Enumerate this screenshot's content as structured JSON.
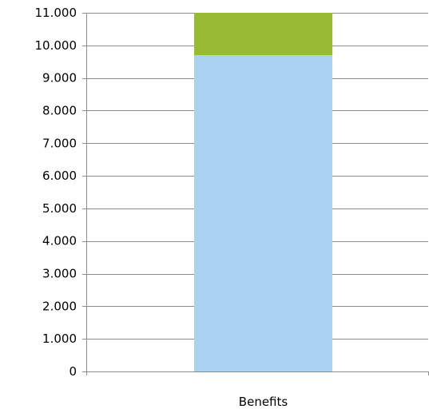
{
  "chart_data": {
    "type": "bar",
    "stacked": true,
    "categories": [
      "Benefits"
    ],
    "series": [
      {
        "values": [
          9700
        ],
        "color": "#A9D3F0"
      },
      {
        "values": [
          1300
        ],
        "color": "#99BB33"
      }
    ],
    "ylim": [
      0,
      11000
    ],
    "y_ticks": [
      0,
      1000,
      2000,
      3000,
      4000,
      5000,
      6000,
      7000,
      8000,
      9000,
      10000,
      11000
    ],
    "y_tick_labels": [
      "0",
      "1.000",
      "2.000",
      "3.000",
      "4.000",
      "5.000",
      "6.000",
      "7.000",
      "8.000",
      "9.000",
      "10.000",
      "11.000"
    ],
    "grid": true,
    "legend": "none"
  }
}
